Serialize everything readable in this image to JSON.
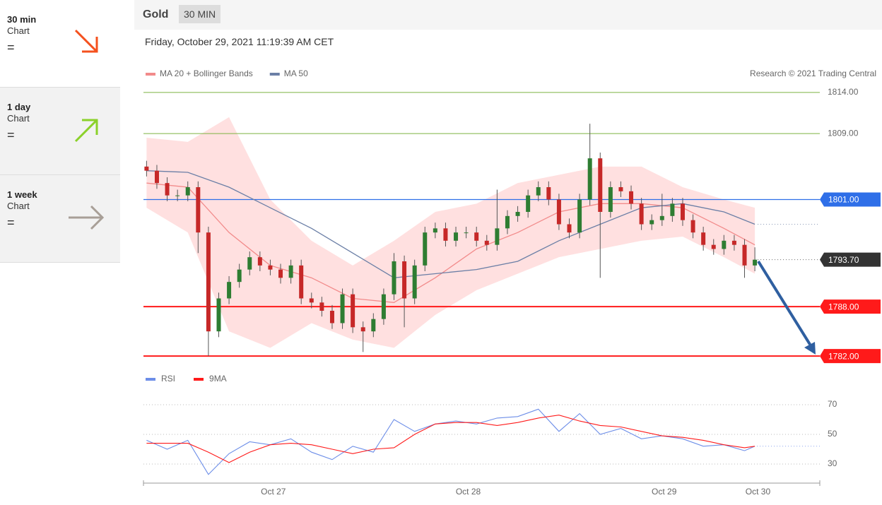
{
  "sidebar": [
    {
      "period": "30 min",
      "label": "Chart",
      "signal": "="
    },
    {
      "period": "1 day",
      "label": "Chart",
      "signal": "="
    },
    {
      "period": "1 week",
      "label": "Chart",
      "signal": "="
    }
  ],
  "header": {
    "instrument": "Gold",
    "interval": "30 MIN",
    "datetime": "Friday, October 29, 2021 11:19:39 AM CET"
  },
  "chart_data": [
    {
      "type": "candlestick",
      "credit": "Research © 2021 Trading Central",
      "up_color": "#2e7d32",
      "down_color": "#c62828",
      "x": [
        0,
        1,
        2,
        3,
        4,
        5,
        6,
        7,
        8,
        9,
        10,
        11,
        12,
        13,
        14,
        15,
        16,
        17,
        18,
        19,
        20,
        21,
        22,
        23,
        24,
        25,
        26,
        27,
        28,
        29,
        30,
        31,
        32,
        33,
        34,
        35,
        36,
        37,
        38,
        39,
        40,
        41,
        42,
        43,
        44,
        45,
        46,
        47,
        48,
        49,
        50,
        51,
        52,
        53,
        54,
        55,
        56,
        57,
        58,
        59
      ],
      "open": [
        1805,
        1804.5,
        1803,
        1801.5,
        1801.5,
        1802.5,
        1797,
        1785,
        1789,
        1791,
        1792.5,
        1794,
        1793,
        1792.5,
        1791.5,
        1793,
        1789,
        1788.5,
        1787.5,
        1786,
        1789.5,
        1785.5,
        1785,
        1786.5,
        1789.5,
        1793.5,
        1789,
        1793,
        1797,
        1797.5,
        1796,
        1797,
        1797,
        1796,
        1795.5,
        1797.5,
        1799,
        1799.5,
        1801.5,
        1802.5,
        1801,
        1798,
        1797,
        1801,
        1806,
        1799.5,
        1802.5,
        1802,
        1800.5,
        1798,
        1798.5,
        1799,
        1800.5,
        1798.5,
        1797,
        1795.5,
        1795,
        1796,
        1795.5,
        1793
      ],
      "high": [
        1805.7,
        1805.2,
        1803.7,
        1802.2,
        1803.2,
        1803.2,
        1797.7,
        1789.7,
        1791.7,
        1793.2,
        1794.7,
        1794.7,
        1793.7,
        1793.2,
        1793.7,
        1793.7,
        1789.7,
        1789.2,
        1788.2,
        1790.2,
        1790.2,
        1786.2,
        1787.2,
        1790.2,
        1794.5,
        1794.2,
        1793.7,
        1797.7,
        1798.2,
        1798.2,
        1797.7,
        1797.7,
        1797.7,
        1796.7,
        1802.2,
        1799.7,
        1800.2,
        1802.2,
        1803.2,
        1803.2,
        1801.7,
        1798.7,
        1801.7,
        1810.2,
        1806.7,
        1803.2,
        1803.2,
        1802.7,
        1801.2,
        1799.2,
        1801.7,
        1801.2,
        1801.2,
        1799.2,
        1797.7,
        1796.2,
        1796.7,
        1796.7,
        1796.2,
        1795.2
      ],
      "low": [
        1803.8,
        1802.3,
        1800.8,
        1800.8,
        1800.8,
        1794.5,
        1782,
        1784.3,
        1788.3,
        1790.3,
        1791.8,
        1792.3,
        1791.8,
        1790.8,
        1790.8,
        1788.3,
        1787.8,
        1786.8,
        1785.3,
        1785.3,
        1784.8,
        1782.5,
        1784.3,
        1785.8,
        1788.8,
        1785.5,
        1788.3,
        1792.3,
        1796.3,
        1795.3,
        1795.3,
        1796.3,
        1795.3,
        1794.8,
        1794.8,
        1796.8,
        1798.3,
        1798.8,
        1800.8,
        1800.3,
        1797.3,
        1796.3,
        1796.3,
        1800.3,
        1791.5,
        1798.8,
        1801.3,
        1799.8,
        1797.3,
        1797.3,
        1797.8,
        1798.3,
        1797.8,
        1796.3,
        1794.8,
        1794.3,
        1794.3,
        1794.8,
        1791.5,
        1792.3
      ],
      "close": [
        1804.5,
        1803,
        1801.5,
        1801.5,
        1802.5,
        1797,
        1785,
        1789,
        1791,
        1792.5,
        1794,
        1793,
        1792.5,
        1791.5,
        1793,
        1789,
        1788.5,
        1787.5,
        1786,
        1789.5,
        1785.5,
        1785,
        1786.5,
        1789.5,
        1793.5,
        1789,
        1793,
        1797,
        1797.5,
        1796,
        1797,
        1797,
        1796,
        1795.5,
        1797.5,
        1799,
        1799.5,
        1801.5,
        1802.5,
        1801,
        1798,
        1797,
        1801,
        1806,
        1799.5,
        1802.5,
        1802,
        1800.5,
        1798,
        1798.5,
        1799,
        1800.5,
        1798.5,
        1797,
        1795.5,
        1795,
        1796,
        1795.5,
        1793,
        1793.7
      ],
      "series": [
        {
          "name": "MA 20 + Bollinger Bands",
          "color": "#f28b8b",
          "band_color": "#ffd6d6",
          "x": [
            0,
            4,
            8,
            12,
            16,
            20,
            24,
            28,
            32,
            36,
            40,
            44,
            48,
            52,
            56,
            59
          ],
          "values": [
            1803,
            1802.5,
            1797,
            1793,
            1791.5,
            1789,
            1788.5,
            1791.5,
            1795,
            1797,
            1799.5,
            1800.5,
            1800.5,
            1800,
            1797.5,
            1795.5
          ],
          "upper": [
            1808.5,
            1808,
            1811,
            1801,
            1796,
            1793,
            1796,
            1799.5,
            1800.5,
            1803,
            1804,
            1805,
            1805,
            1802.5,
            1801,
            1800
          ],
          "lower": [
            1800,
            1797,
            1785,
            1783,
            1786,
            1784,
            1783,
            1787,
            1790,
            1792,
            1794,
            1795,
            1796,
            1796.5,
            1794,
            1792
          ]
        },
        {
          "name": "MA 50",
          "color": "#6b7fa6",
          "x": [
            0,
            4,
            8,
            12,
            16,
            20,
            24,
            28,
            32,
            36,
            40,
            44,
            48,
            52,
            56,
            59
          ],
          "values": [
            1804.5,
            1804.3,
            1802.5,
            1800,
            1797.5,
            1794.5,
            1791.5,
            1792,
            1792.5,
            1793.5,
            1796,
            1798,
            1800,
            1800.5,
            1799.5,
            1798
          ]
        }
      ],
      "levels": [
        {
          "value": 1814,
          "label": "1814.00",
          "color": "#7cb342",
          "style": "line"
        },
        {
          "value": 1809,
          "label": "1809.00",
          "color": "#7cb342",
          "style": "line"
        },
        {
          "value": 1801,
          "label": "1801.00",
          "color": "#2f6fe8",
          "style": "box"
        },
        {
          "value": 1793.7,
          "label": "1793.70",
          "color": "#333333",
          "style": "current"
        },
        {
          "value": 1788,
          "label": "1788.00",
          "color": "#ff1a1a",
          "style": "box"
        },
        {
          "value": 1782,
          "label": "1782.00",
          "color": "#ff1a1a",
          "style": "box"
        }
      ],
      "xlim": [
        -0.3,
        65.3
      ],
      "ylim": [
        1781.5,
        1814.5
      ]
    },
    {
      "type": "line",
      "x": [
        0,
        2,
        4,
        6,
        8,
        10,
        12,
        14,
        16,
        18,
        20,
        22,
        24,
        26,
        28,
        30,
        32,
        34,
        36,
        38,
        40,
        42,
        44,
        46,
        48,
        50,
        52,
        54,
        56,
        58,
        59
      ],
      "series": [
        {
          "name": "RSI",
          "color": "#6d8ee8",
          "values": [
            46,
            40,
            46,
            23,
            37,
            45,
            43,
            47,
            38,
            33,
            42,
            38,
            60,
            52,
            57,
            59,
            57,
            61,
            62,
            67,
            52,
            64,
            50,
            54,
            47,
            49,
            47,
            42,
            43,
            39,
            42
          ]
        },
        {
          "name": "9MA",
          "color": "#ff1a1a",
          "values": [
            44,
            44,
            44,
            38,
            31,
            38,
            43,
            44,
            43,
            40,
            37,
            40,
            41,
            50,
            57,
            58,
            58,
            56,
            58,
            61,
            63,
            59,
            56,
            55,
            52,
            49,
            48,
            46,
            43,
            41,
            42
          ]
        }
      ],
      "xlim": [
        -0.3,
        65.3
      ],
      "ylim": [
        20,
        80
      ],
      "yticks": [
        30,
        50,
        70
      ],
      "xticks": [
        {
          "value": 12.3,
          "label": "Oct 27"
        },
        {
          "value": 31.2,
          "label": "Oct 28"
        },
        {
          "value": 50.2,
          "label": "Oct 29"
        },
        {
          "value": 59.3,
          "label": "Oct 30"
        }
      ]
    }
  ]
}
